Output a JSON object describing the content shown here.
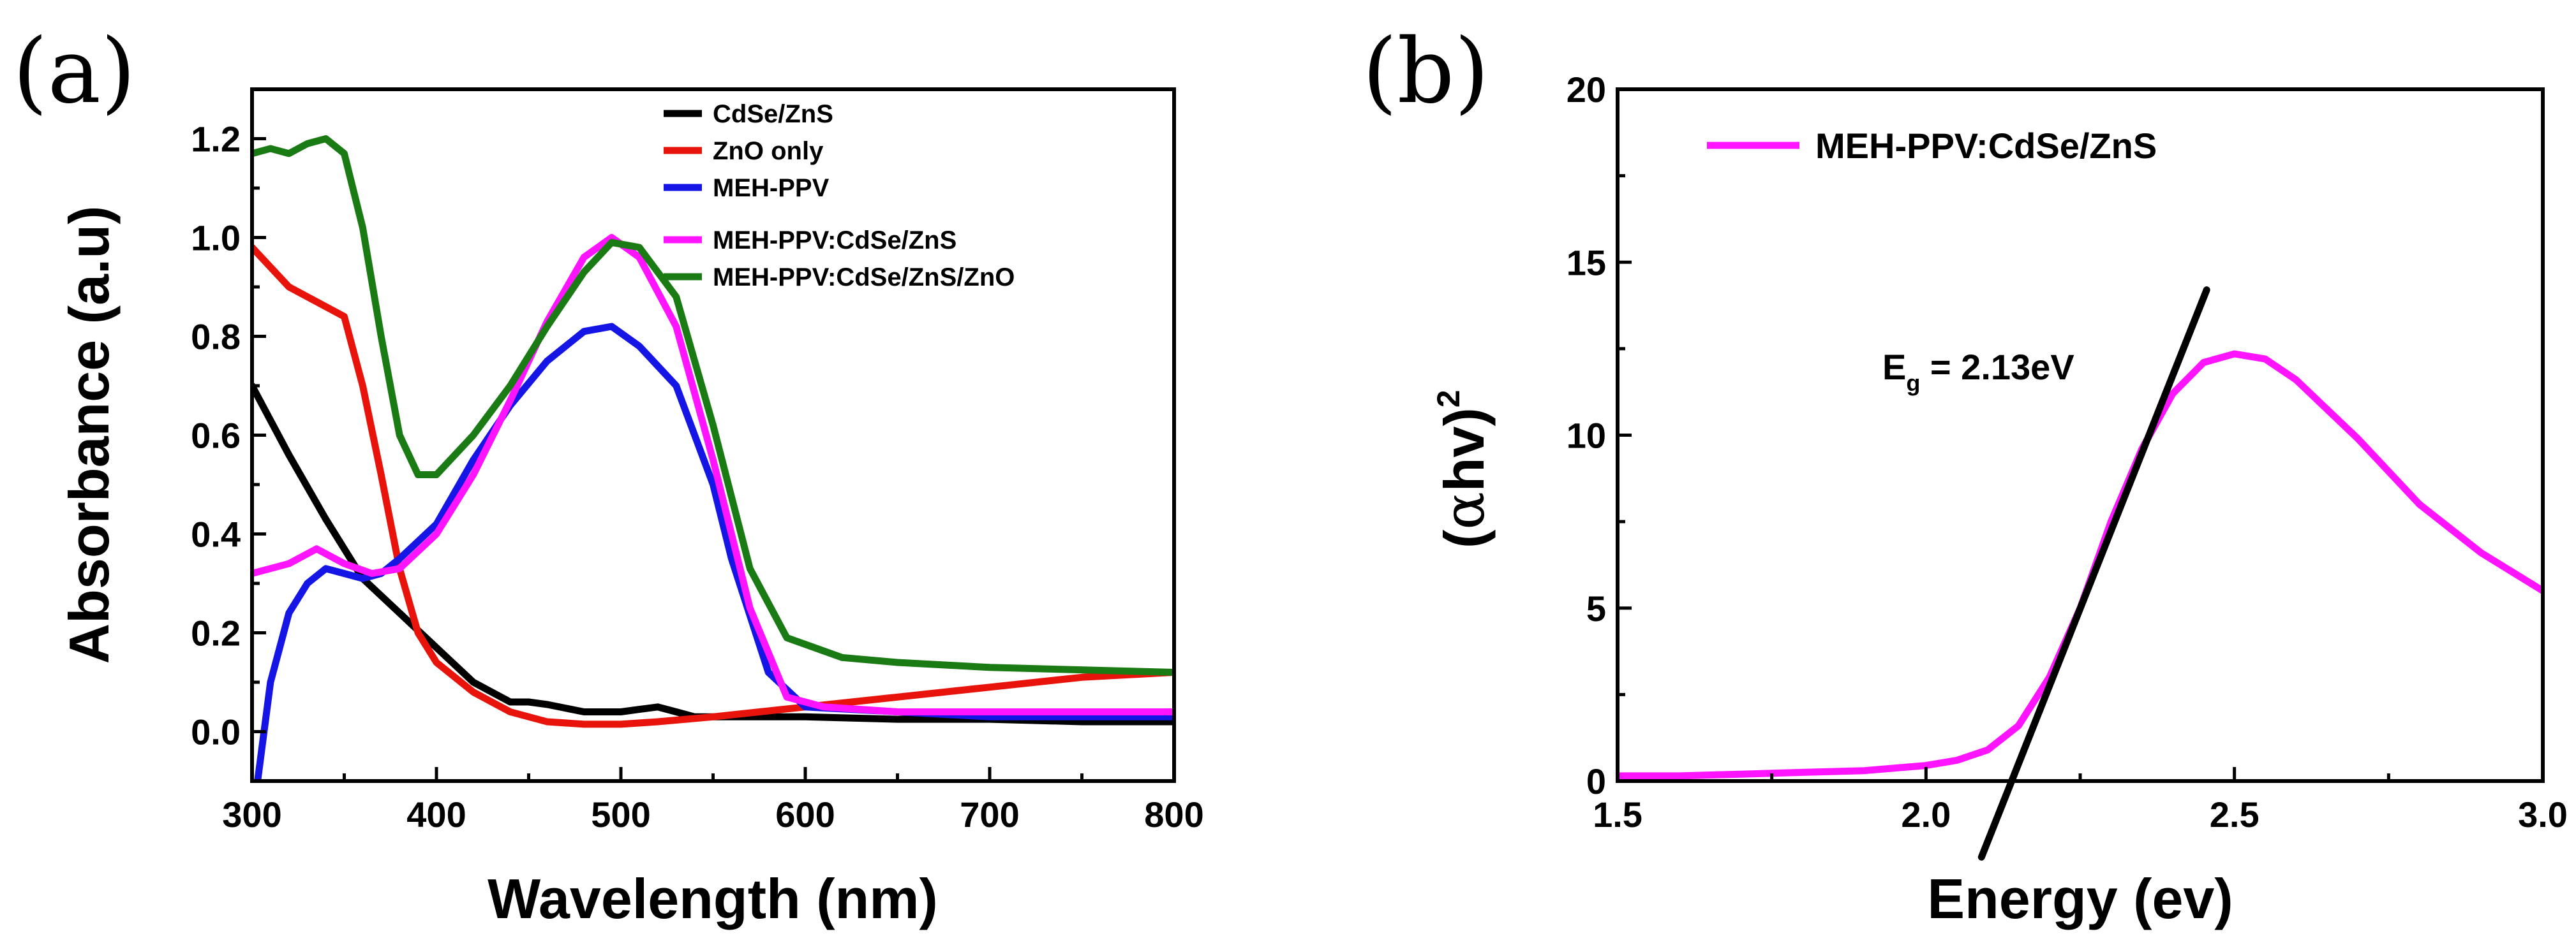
{
  "panels": {
    "a": {
      "label": "(a)",
      "title": "",
      "legend_position": "top-right",
      "legend": [
        {
          "name": "CdSe/ZnS",
          "color": "#000000"
        },
        {
          "name": "ZnO only",
          "color": "#e8140c"
        },
        {
          "name": "MEH-PPV",
          "color": "#1515e6"
        },
        {
          "name": "MEH-PPV:CdSe/ZnS",
          "color": "#ff14ff"
        },
        {
          "name": "MEH-PPV:CdSe/ZnS/ZnO",
          "color": "#1a7a14"
        }
      ]
    },
    "b": {
      "label": "(b)",
      "legend_position": "top-left",
      "legend": [
        {
          "name": "MEH-PPV:CdSe/ZnS",
          "color": "#ff14ff"
        }
      ],
      "annotation_main": "E",
      "annotation_sub": "g",
      "annotation_value": " = 2.13eV",
      "ylabel_left": "(",
      "ylabel_alpha": "α",
      "ylabel_hv": "hv)",
      "ylabel_sup": "2"
    }
  },
  "chart_data": [
    {
      "type": "line",
      "panel": "a",
      "xlabel": "Wavelength (nm)",
      "ylabel": "Absorbance (a.u)",
      "xlim": [
        300,
        800
      ],
      "ylim": [
        -0.1,
        1.3
      ],
      "xticks": [
        300,
        400,
        500,
        600,
        700,
        800
      ],
      "yticks": [
        0.0,
        0.2,
        0.4,
        0.6,
        0.8,
        1.0,
        1.2
      ],
      "xtick_labels": [
        "300",
        "400",
        "500",
        "600",
        "700",
        "800"
      ],
      "ytick_labels": [
        "0.0",
        "0.2",
        "0.4",
        "0.6",
        "0.8",
        "1.0",
        "1.2"
      ],
      "series": [
        {
          "name": "CdSe/ZnS",
          "color": "#000000",
          "x": [
            300,
            320,
            340,
            360,
            380,
            400,
            420,
            440,
            450,
            460,
            480,
            500,
            510,
            520,
            530,
            540,
            560,
            600,
            650,
            700,
            750,
            800
          ],
          "y": [
            0.7,
            0.56,
            0.43,
            0.31,
            0.24,
            0.17,
            0.1,
            0.06,
            0.06,
            0.055,
            0.04,
            0.04,
            0.045,
            0.05,
            0.04,
            0.03,
            0.03,
            0.03,
            0.025,
            0.025,
            0.02,
            0.02
          ]
        },
        {
          "name": "ZnO only",
          "color": "#e8140c",
          "x": [
            300,
            320,
            340,
            350,
            360,
            370,
            380,
            390,
            400,
            420,
            440,
            460,
            480,
            500,
            520,
            550,
            600,
            650,
            700,
            750,
            800
          ],
          "y": [
            0.98,
            0.9,
            0.86,
            0.84,
            0.7,
            0.52,
            0.33,
            0.2,
            0.14,
            0.08,
            0.04,
            0.02,
            0.015,
            0.015,
            0.02,
            0.03,
            0.05,
            0.07,
            0.09,
            0.11,
            0.12
          ]
        },
        {
          "name": "MEH-PPV",
          "color": "#1515e6",
          "x": [
            303,
            310,
            320,
            330,
            340,
            350,
            360,
            370,
            380,
            400,
            420,
            440,
            460,
            480,
            495,
            510,
            530,
            550,
            560,
            580,
            600,
            650,
            700,
            800
          ],
          "y": [
            -0.1,
            0.1,
            0.24,
            0.3,
            0.33,
            0.32,
            0.31,
            0.32,
            0.35,
            0.42,
            0.55,
            0.66,
            0.75,
            0.81,
            0.82,
            0.78,
            0.7,
            0.5,
            0.35,
            0.12,
            0.05,
            0.04,
            0.03,
            0.03
          ]
        },
        {
          "name": "MEH-PPV:CdSe/ZnS",
          "color": "#ff14ff",
          "x": [
            300,
            320,
            335,
            350,
            365,
            380,
            400,
            420,
            440,
            460,
            480,
            495,
            510,
            530,
            550,
            570,
            590,
            610,
            650,
            700,
            800
          ],
          "y": [
            0.32,
            0.34,
            0.37,
            0.34,
            0.32,
            0.33,
            0.4,
            0.52,
            0.67,
            0.83,
            0.96,
            1.0,
            0.96,
            0.82,
            0.55,
            0.25,
            0.07,
            0.05,
            0.04,
            0.04,
            0.04
          ]
        },
        {
          "name": "MEH-PPV:CdSe/ZnS/ZnO",
          "color": "#1a7a14",
          "x": [
            300,
            310,
            320,
            330,
            340,
            350,
            360,
            370,
            380,
            390,
            400,
            410,
            420,
            440,
            460,
            480,
            495,
            510,
            530,
            550,
            570,
            590,
            620,
            650,
            700,
            800
          ],
          "y": [
            1.17,
            1.18,
            1.17,
            1.19,
            1.2,
            1.17,
            1.02,
            0.8,
            0.6,
            0.52,
            0.52,
            0.56,
            0.6,
            0.7,
            0.82,
            0.93,
            0.99,
            0.98,
            0.88,
            0.62,
            0.33,
            0.19,
            0.15,
            0.14,
            0.13,
            0.12
          ]
        }
      ]
    },
    {
      "type": "line",
      "panel": "b",
      "xlabel": "Energy (ev)",
      "ylabel": "(αhv)^2",
      "xlim": [
        1.5,
        3.0
      ],
      "ylim": [
        0,
        20
      ],
      "xticks": [
        1.5,
        2.0,
        2.5,
        3.0
      ],
      "yticks": [
        0,
        5,
        10,
        15,
        20
      ],
      "xtick_labels": [
        "1.5",
        "2.0",
        "2.5",
        "3.0"
      ],
      "ytick_labels": [
        "0",
        "5",
        "10",
        "15",
        "20"
      ],
      "series": [
        {
          "name": "MEH-PPV:CdSe/ZnS",
          "color": "#ff14ff",
          "x": [
            1.5,
            1.6,
            1.7,
            1.8,
            1.9,
            2.0,
            2.05,
            2.1,
            2.15,
            2.2,
            2.25,
            2.3,
            2.35,
            2.4,
            2.45,
            2.5,
            2.55,
            2.6,
            2.7,
            2.8,
            2.9,
            3.0
          ],
          "y": [
            0.15,
            0.15,
            0.2,
            0.25,
            0.3,
            0.45,
            0.6,
            0.9,
            1.6,
            3.0,
            5.0,
            7.5,
            9.6,
            11.2,
            12.1,
            12.35,
            12.2,
            11.6,
            9.9,
            8.0,
            6.6,
            5.5
          ]
        },
        {
          "name": "Tangent fit",
          "color": "#000000",
          "x": [
            2.09,
            2.455
          ],
          "y": [
            -2.2,
            14.2
          ]
        }
      ]
    }
  ]
}
